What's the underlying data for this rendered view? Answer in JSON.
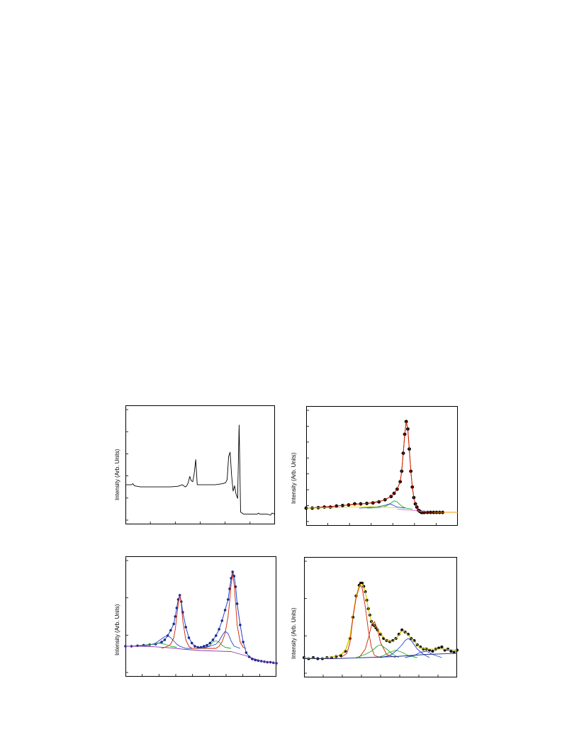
{
  "chart_data": [
    {
      "id": "a",
      "type": "line",
      "ylabel": "Intensity (Arb. Units)",
      "xlim": [
        0,
        100
      ],
      "ylim": [
        0,
        100
      ],
      "series": [
        {
          "color": "#000000",
          "x": [
            0,
            4,
            5,
            6,
            10,
            20,
            30,
            35,
            38,
            40,
            41,
            42,
            43,
            44,
            45,
            46,
            47,
            48,
            50,
            60,
            65,
            67,
            68,
            69,
            70,
            71,
            72,
            73,
            74,
            75,
            76,
            77,
            78,
            79,
            80,
            85,
            88,
            89,
            90,
            95,
            97,
            98,
            100
          ],
          "y": [
            31,
            31,
            32,
            30,
            29,
            29,
            29,
            29.5,
            31,
            29,
            30,
            33,
            39,
            35,
            34,
            42,
            55,
            31,
            31,
            31,
            32,
            33,
            36,
            58,
            62,
            40,
            25,
            30,
            22,
            18,
            88,
            5,
            4,
            3,
            3,
            3,
            3,
            4,
            3,
            3,
            2,
            4,
            3
          ]
        }
      ]
    },
    {
      "id": "b",
      "type": "line",
      "ylabel": "Intensity (Arb. Units)",
      "xlim": [
        0,
        100
      ],
      "ylim": [
        0,
        100
      ],
      "series": [
        {
          "name": "",
          "color": "#000000",
          "style": "points",
          "x": [
            0,
            4,
            8,
            12,
            16,
            20,
            24,
            28,
            32,
            36,
            40,
            44,
            48,
            52,
            56,
            58,
            60,
            62,
            63,
            64,
            65,
            66,
            67,
            68,
            69,
            70,
            71,
            72,
            73,
            74,
            75,
            76,
            77,
            78,
            80,
            82,
            84,
            86,
            88,
            90
          ],
          "y": [
            10,
            10,
            10.5,
            11,
            11,
            12,
            12.5,
            13,
            14,
            14,
            14.5,
            15,
            16,
            18,
            21,
            24,
            28,
            35,
            45,
            62,
            80,
            92,
            85,
            66,
            45,
            30,
            20,
            14,
            11,
            8,
            7,
            6,
            6,
            6,
            6,
            6,
            6,
            6,
            6,
            6
          ]
        },
        {
          "name": "",
          "color": "#cc2200",
          "style": "line",
          "x": [
            0,
            20,
            40,
            50,
            56,
            58,
            60,
            62,
            63,
            64,
            65,
            66,
            67,
            68,
            69,
            70,
            71,
            72,
            73,
            74,
            76,
            80,
            90,
            100
          ],
          "y": [
            10,
            12,
            14.5,
            17,
            21,
            24,
            28,
            35,
            45,
            62,
            80,
            92,
            85,
            66,
            45,
            30,
            20,
            14,
            11,
            8,
            6,
            6,
            6,
            6
          ]
        },
        {
          "name": "",
          "color": "#22aa22",
          "style": "line",
          "x": [
            40,
            48,
            52,
            54,
            56,
            58,
            60,
            62,
            64,
            66,
            70
          ],
          "y": [
            10,
            10.5,
            11.5,
            13,
            15,
            17,
            16,
            13,
            11,
            10,
            9
          ]
        },
        {
          "name": "",
          "color": "#2244cc",
          "style": "line",
          "x": [
            35,
            45,
            50,
            53,
            55,
            57,
            60,
            65
          ],
          "y": [
            10,
            11,
            12,
            13,
            14,
            13,
            11,
            10
          ]
        },
        {
          "name": "",
          "color": "#dddd00",
          "style": "line",
          "x": [
            0,
            20,
            30,
            40,
            50,
            60
          ],
          "y": [
            10,
            10.5,
            11,
            11.5,
            11,
            10.5
          ]
        },
        {
          "name": "",
          "color": "#dd66cc",
          "style": "line",
          "x": [
            60,
            70,
            76,
            80
          ],
          "y": [
            9,
            8,
            7,
            7
          ]
        },
        {
          "name": "",
          "color": "#ff9900",
          "style": "line",
          "x": [
            84,
            90,
            100
          ],
          "y": [
            6,
            6,
            6
          ]
        }
      ]
    },
    {
      "id": "c",
      "type": "line",
      "ylabel": "Intensity (Arb. Units)",
      "xlim": [
        0,
        100
      ],
      "ylim": [
        0,
        100
      ],
      "series": [
        {
          "name": "",
          "color": "#1a2a8a",
          "style": "points",
          "x": [
            0,
            4,
            8,
            12,
            16,
            20,
            24,
            26,
            28,
            30,
            32,
            33,
            34,
            35,
            36,
            37,
            38,
            40,
            42,
            44,
            46,
            48,
            50,
            52,
            54,
            56,
            58,
            60,
            62,
            64,
            66,
            68,
            69,
            70,
            71,
            72,
            73,
            74,
            76,
            78,
            80,
            82,
            84,
            86,
            88,
            90,
            92,
            94,
            96,
            98,
            100
          ],
          "y": [
            22,
            22,
            22.5,
            23,
            23.5,
            24,
            26,
            28,
            32,
            37,
            43,
            50,
            58,
            66,
            70,
            64,
            54,
            40,
            30,
            25,
            22,
            21,
            21,
            22,
            23,
            25,
            28,
            32,
            38,
            46,
            56,
            66,
            76,
            86,
            92,
            88,
            78,
            62,
            42,
            26,
            16,
            12,
            10,
            9,
            8.5,
            8,
            7.5,
            7,
            7,
            6.5,
            6
          ]
        },
        {
          "name": "",
          "color": "#cc2200",
          "style": "line",
          "x": [
            24,
            28,
            30,
            32,
            33,
            34,
            35,
            36,
            37,
            38,
            40,
            42,
            44,
            60,
            62,
            64,
            66,
            68,
            69,
            70,
            71,
            72,
            73,
            74,
            76,
            78,
            80
          ],
          "y": [
            20,
            22,
            24,
            30,
            38,
            50,
            62,
            70,
            62,
            46,
            28,
            22,
            20,
            20,
            22,
            26,
            34,
            50,
            64,
            80,
            90,
            80,
            62,
            42,
            26,
            21,
            20
          ]
        },
        {
          "name": "",
          "color": "#2244cc",
          "style": "line",
          "x": [
            10,
            16,
            20,
            24,
            26,
            28,
            30,
            32,
            34,
            36,
            38,
            40,
            44
          ],
          "y": [
            22,
            23,
            25,
            29,
            31,
            32,
            30,
            27,
            24,
            22,
            21,
            20,
            20
          ]
        },
        {
          "name": "",
          "color": "#22aa22",
          "style": "line",
          "x": [
            8,
            14,
            18,
            22,
            26,
            28,
            30,
            34
          ],
          "y": [
            22,
            23,
            24,
            25,
            24,
            23,
            22,
            21
          ]
        },
        {
          "name": "",
          "color": "#22aa22",
          "style": "line",
          "x": [
            50,
            54,
            56,
            58,
            60,
            62,
            64,
            66,
            70
          ],
          "y": [
            20,
            21,
            23,
            26,
            27,
            26,
            23,
            21,
            20
          ]
        },
        {
          "name": "",
          "color": "#2244cc",
          "style": "line",
          "x": [
            48,
            52,
            56,
            60,
            62,
            64,
            66,
            68,
            70,
            72,
            76
          ],
          "y": [
            20,
            21,
            22,
            24,
            27,
            32,
            36,
            34,
            27,
            22,
            20
          ]
        },
        {
          "name": "",
          "color": "#8833aa",
          "style": "line",
          "x": [
            0,
            10,
            20,
            30,
            40,
            50,
            60,
            70,
            80,
            90,
            100
          ],
          "y": [
            22,
            22,
            21.5,
            20.5,
            19,
            18,
            17.5,
            17,
            13,
            8,
            6
          ]
        }
      ]
    },
    {
      "id": "d",
      "type": "line",
      "ylabel": "Intensity (Arb. Units)",
      "xlim": [
        0,
        100
      ],
      "ylim": [
        0,
        100
      ],
      "series": [
        {
          "name": "",
          "color": "#111111",
          "style": "points",
          "x": [
            0,
            3,
            6,
            9,
            12,
            15,
            18,
            21,
            24,
            27,
            30,
            32,
            34,
            36,
            37,
            38,
            39,
            40,
            41,
            42,
            43,
            44,
            45,
            46,
            47,
            48,
            50,
            52,
            54,
            56,
            58,
            60,
            62,
            64,
            66,
            68,
            70,
            72,
            74,
            76,
            78,
            80,
            82,
            84,
            86,
            88,
            90,
            92,
            94,
            96,
            98,
            100
          ],
          "y": [
            12,
            11,
            12,
            11,
            11,
            12,
            12,
            13,
            14,
            18,
            30,
            50,
            70,
            80,
            82,
            82,
            79,
            74,
            66,
            58,
            52,
            46,
            43,
            42,
            40,
            38,
            34,
            30,
            28,
            27,
            28,
            30,
            34,
            38,
            36,
            34,
            30,
            28,
            24,
            22,
            20,
            20,
            19,
            18,
            20,
            21,
            22,
            19,
            20,
            18,
            17,
            19
          ]
        },
        {
          "name": "",
          "color": "#ddcc00",
          "style": "line",
          "x": [
            0,
            10,
            20,
            24,
            27,
            30,
            32,
            34,
            36,
            37,
            38,
            39,
            40,
            42,
            44,
            46,
            48,
            50,
            54,
            58,
            62,
            64,
            66,
            68,
            72,
            76,
            80,
            86,
            92,
            100
          ],
          "y": [
            12,
            11,
            13,
            15,
            19,
            32,
            52,
            70,
            79,
            81,
            81,
            78,
            73,
            58,
            46,
            42,
            39,
            35,
            28,
            27,
            33,
            37,
            36,
            33,
            27,
            21,
            20,
            20,
            20,
            19
          ]
        },
        {
          "name": "",
          "color": "#cc2200",
          "style": "line",
          "x": [
            24,
            28,
            30,
            32,
            34,
            36,
            37,
            38,
            40,
            42,
            44,
            46,
            50
          ],
          "y": [
            12,
            16,
            26,
            50,
            68,
            78,
            80,
            77,
            60,
            38,
            22,
            14,
            12
          ]
        },
        {
          "name": "",
          "color": "#cc2200",
          "style": "line",
          "x": [
            36,
            40,
            42,
            44,
            46,
            48,
            50,
            54,
            60
          ],
          "y": [
            12,
            20,
            30,
            42,
            46,
            38,
            26,
            15,
            12
          ]
        },
        {
          "name": "",
          "color": "#22aa22",
          "style": "line",
          "x": [
            34,
            40,
            44,
            48,
            50,
            54,
            58,
            62
          ],
          "y": [
            12,
            15,
            18,
            23,
            24,
            20,
            15,
            12
          ]
        },
        {
          "name": "",
          "color": "#22aa22",
          "style": "line",
          "x": [
            48,
            52,
            56,
            60,
            64,
            68,
            74
          ],
          "y": [
            12,
            14,
            17,
            19,
            17,
            14,
            12
          ]
        },
        {
          "name": "",
          "color": "#2244cc",
          "style": "line",
          "x": [
            50,
            56,
            60,
            64,
            66,
            68,
            70,
            74,
            78,
            82
          ],
          "y": [
            12,
            14,
            18,
            24,
            28,
            30,
            28,
            20,
            15,
            12
          ]
        },
        {
          "name": "",
          "color": "#2244cc",
          "style": "line",
          "x": [
            66,
            72,
            76,
            80,
            84,
            90
          ],
          "y": [
            12,
            14,
            17,
            18,
            15,
            12
          ]
        },
        {
          "name": "",
          "color": "#1a2a8a",
          "style": "line",
          "x": [
            0,
            20,
            40,
            60,
            80,
            100
          ],
          "y": [
            11,
            11,
            12,
            13,
            15,
            16
          ]
        }
      ]
    }
  ]
}
